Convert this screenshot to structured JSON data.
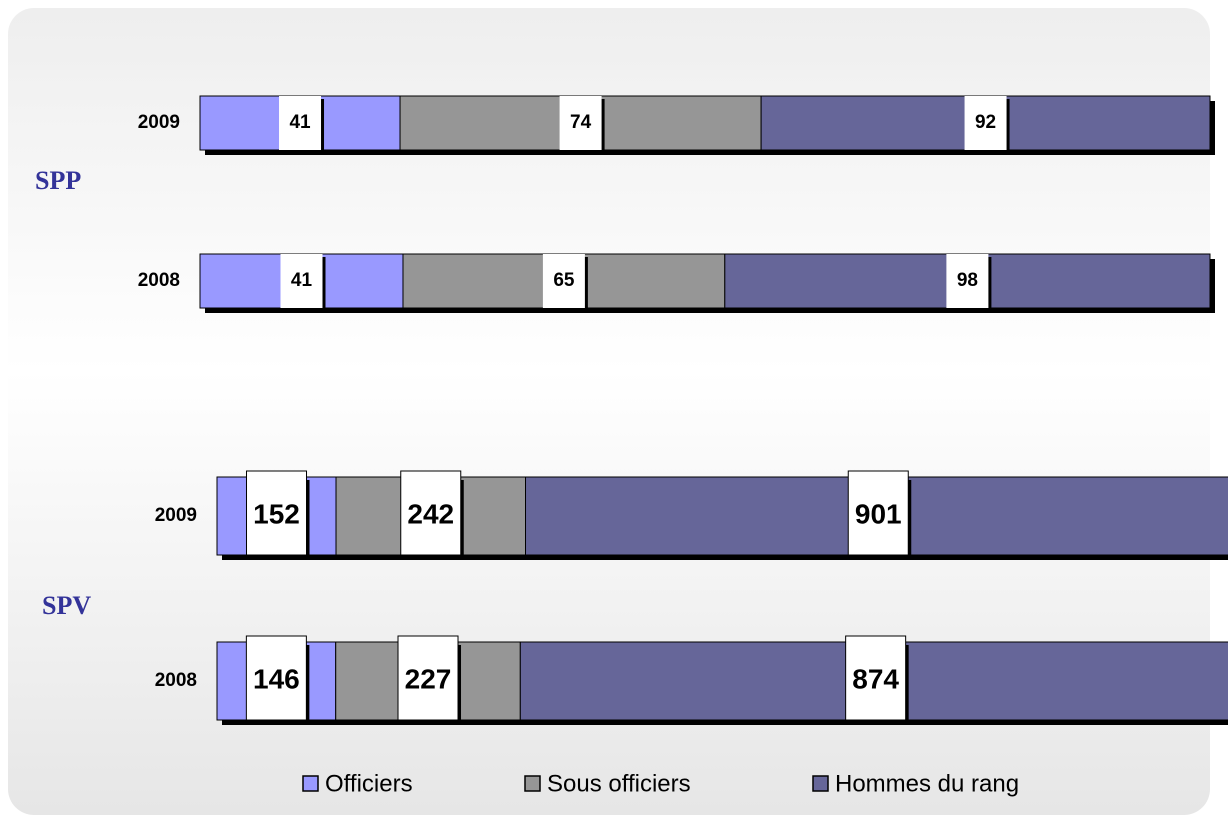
{
  "chart_data": [
    {
      "type": "bar",
      "orientation": "horizontal",
      "stacking": "percent",
      "title": "SPP",
      "categories": [
        "2009",
        "2008"
      ],
      "series": [
        {
          "name": "Officiers",
          "color": "#9999ff",
          "values": [
            41,
            41
          ]
        },
        {
          "name": "Sous officiers",
          "color": "#969696",
          "values": [
            74,
            65
          ]
        },
        {
          "name": "Hommes du rang",
          "color": "#666699",
          "values": [
            92,
            98
          ]
        }
      ]
    },
    {
      "type": "bar",
      "orientation": "horizontal",
      "stacking": "percent",
      "title": "SPV",
      "categories": [
        "2009",
        "2008"
      ],
      "series": [
        {
          "color": "#9999ff",
          "values": [
            152,
            146
          ]
        },
        {
          "color": "#969696",
          "values": [
            242,
            227
          ]
        },
        {
          "color": "#666699",
          "values": [
            901,
            874
          ]
        }
      ]
    }
  ]
}
